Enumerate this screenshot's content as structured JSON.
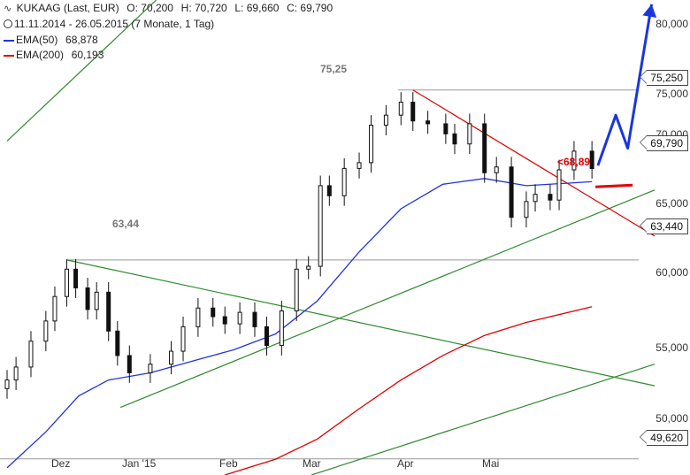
{
  "header": {
    "icon": "candlestick-wave-icon",
    "line1": [
      "KUKAAG (Last, EUR)",
      "O: 70,200",
      "H: 70,720",
      "L: 69,660",
      "C: 69,790"
    ],
    "line2": "11.11.2014 - 26.05.2015 (7 Monate, 1 Tag)",
    "ema50_label": "EMA(50)",
    "ema50_value": "68,878",
    "ema50_color": "#2233dd",
    "ema200_label": "EMA(200)",
    "ema200_value": "60,193",
    "ema200_color": "#e00000"
  },
  "annotations": {
    "level_high": "75,25",
    "level_low": "63,44",
    "ema_note": "<68,89"
  },
  "price_boxes": [
    "75,250",
    "69,790",
    "63,440",
    "49,620"
  ],
  "chart_data": {
    "type": "candlestick",
    "title": "KUKAAG (Last, EUR)",
    "ylim": [
      48.5,
      81.5
    ],
    "y_ticks": [
      "80,000",
      "75,000",
      "70,000",
      "65,000",
      "60,000",
      "55,000",
      "50,000"
    ],
    "y_tick_values": [
      80,
      75,
      70,
      65,
      60,
      55,
      50
    ],
    "x_ticks": [
      "Dez",
      "Jan '15",
      "Feb",
      "Mar",
      "Apr",
      "Mai"
    ],
    "x_tick_dates": [
      "2014-12-01",
      "2015-01-01",
      "2015-02-01",
      "2015-03-01",
      "2015-04-01",
      "2015-05-01"
    ],
    "x_range": [
      "2014-11-11",
      "2015-06-16"
    ],
    "grid": "none",
    "horizontal_levels": [
      75.25,
      63.44,
      49.62
    ],
    "close": [
      [
        "2014-11-11",
        55.1
      ],
      [
        "2014-11-14",
        56.0
      ],
      [
        "2014-11-19",
        57.8
      ],
      [
        "2014-11-24",
        59.2
      ],
      [
        "2014-11-27",
        60.9
      ],
      [
        "2014-12-01",
        62.8
      ],
      [
        "2014-12-04",
        61.5
      ],
      [
        "2014-12-08",
        60.0
      ],
      [
        "2014-12-11",
        61.2
      ],
      [
        "2014-12-15",
        58.5
      ],
      [
        "2014-12-18",
        56.8
      ],
      [
        "2014-12-22",
        55.6
      ],
      [
        "2014-12-29",
        56.2
      ],
      [
        "2015-01-05",
        57.1
      ],
      [
        "2015-01-09",
        58.8
      ],
      [
        "2015-01-14",
        60.1
      ],
      [
        "2015-01-19",
        59.5
      ],
      [
        "2015-01-23",
        59.0
      ],
      [
        "2015-01-28",
        59.8
      ],
      [
        "2015-02-02",
        58.8
      ],
      [
        "2015-02-06",
        57.5
      ],
      [
        "2015-02-11",
        59.9
      ],
      [
        "2015-02-16",
        62.8
      ],
      [
        "2015-02-20",
        63.0
      ],
      [
        "2015-02-24",
        68.6
      ],
      [
        "2015-02-27",
        67.9
      ],
      [
        "2015-03-04",
        69.8
      ],
      [
        "2015-03-09",
        70.2
      ],
      [
        "2015-03-13",
        72.8
      ],
      [
        "2015-03-18",
        73.5
      ],
      [
        "2015-03-23",
        74.4
      ],
      [
        "2015-03-27",
        73.1
      ],
      [
        "2015-04-01",
        72.9
      ],
      [
        "2015-04-07",
        72.2
      ],
      [
        "2015-04-10",
        71.5
      ],
      [
        "2015-04-15",
        72.9
      ],
      [
        "2015-04-20",
        69.5
      ],
      [
        "2015-04-24",
        69.9
      ],
      [
        "2015-04-29",
        66.4
      ],
      [
        "2015-05-04",
        67.5
      ],
      [
        "2015-05-07",
        68.0
      ],
      [
        "2015-05-12",
        67.6
      ],
      [
        "2015-05-15",
        69.7
      ],
      [
        "2015-05-20",
        71.0
      ],
      [
        "2015-05-26",
        69.79
      ]
    ],
    "series": [
      {
        "name": "EMA(50)",
        "color": "#2233dd",
        "points": [
          [
            "2014-11-11",
            49.0
          ],
          [
            "2014-11-24",
            51.5
          ],
          [
            "2014-12-05",
            54.0
          ],
          [
            "2014-12-15",
            55.1
          ],
          [
            "2014-12-29",
            55.6
          ],
          [
            "2015-01-12",
            56.4
          ],
          [
            "2015-01-26",
            57.2
          ],
          [
            "2015-02-09",
            58.3
          ],
          [
            "2015-02-23",
            60.6
          ],
          [
            "2015-03-09",
            64.0
          ],
          [
            "2015-03-23",
            67.0
          ],
          [
            "2015-04-06",
            68.7
          ],
          [
            "2015-04-20",
            69.1
          ],
          [
            "2015-05-04",
            68.6
          ],
          [
            "2015-05-26",
            68.88
          ]
        ]
      },
      {
        "name": "EMA(200)",
        "color": "#e00000",
        "points": [
          [
            "2015-01-23",
            48.5
          ],
          [
            "2015-02-09",
            49.6
          ],
          [
            "2015-02-23",
            51.0
          ],
          [
            "2015-03-09",
            53.1
          ],
          [
            "2015-03-23",
            55.1
          ],
          [
            "2015-04-06",
            56.8
          ],
          [
            "2015-04-20",
            58.2
          ],
          [
            "2015-05-04",
            59.1
          ],
          [
            "2015-05-26",
            60.19
          ]
        ]
      }
    ],
    "trendlines": [
      {
        "color": "#2e8b2e",
        "from": [
          "2014-11-11",
          71.7
        ],
        "to": [
          "2014-12-31",
          81.5
        ]
      },
      {
        "color": "#2e8b2e",
        "from": [
          "2014-12-01",
          63.44
        ],
        "to": [
          "2015-06-16",
          54.7
        ]
      },
      {
        "color": "#2e8b2e",
        "from": [
          "2014-12-19",
          53.2
        ],
        "to": [
          "2015-06-16",
          68.3
        ]
      },
      {
        "color": "#2e8b2e",
        "from": [
          "2015-02-21",
          48.5
        ],
        "to": [
          "2015-06-16",
          56.2
        ]
      },
      {
        "color": "#e00000",
        "from": [
          "2015-03-27",
          75.25
        ],
        "to": [
          "2015-06-16",
          65.1
        ]
      }
    ],
    "forecast_arrow": {
      "color": "#1a35e0",
      "points": [
        [
          "2015-05-28",
          70.0
        ],
        [
          "2015-06-03",
          73.5
        ],
        [
          "2015-06-07",
          71.2
        ],
        [
          "2015-06-15",
          81.2
        ]
      ]
    },
    "marker": {
      "label": "<68,89",
      "value": 68.89,
      "date": "2015-05-26"
    }
  }
}
